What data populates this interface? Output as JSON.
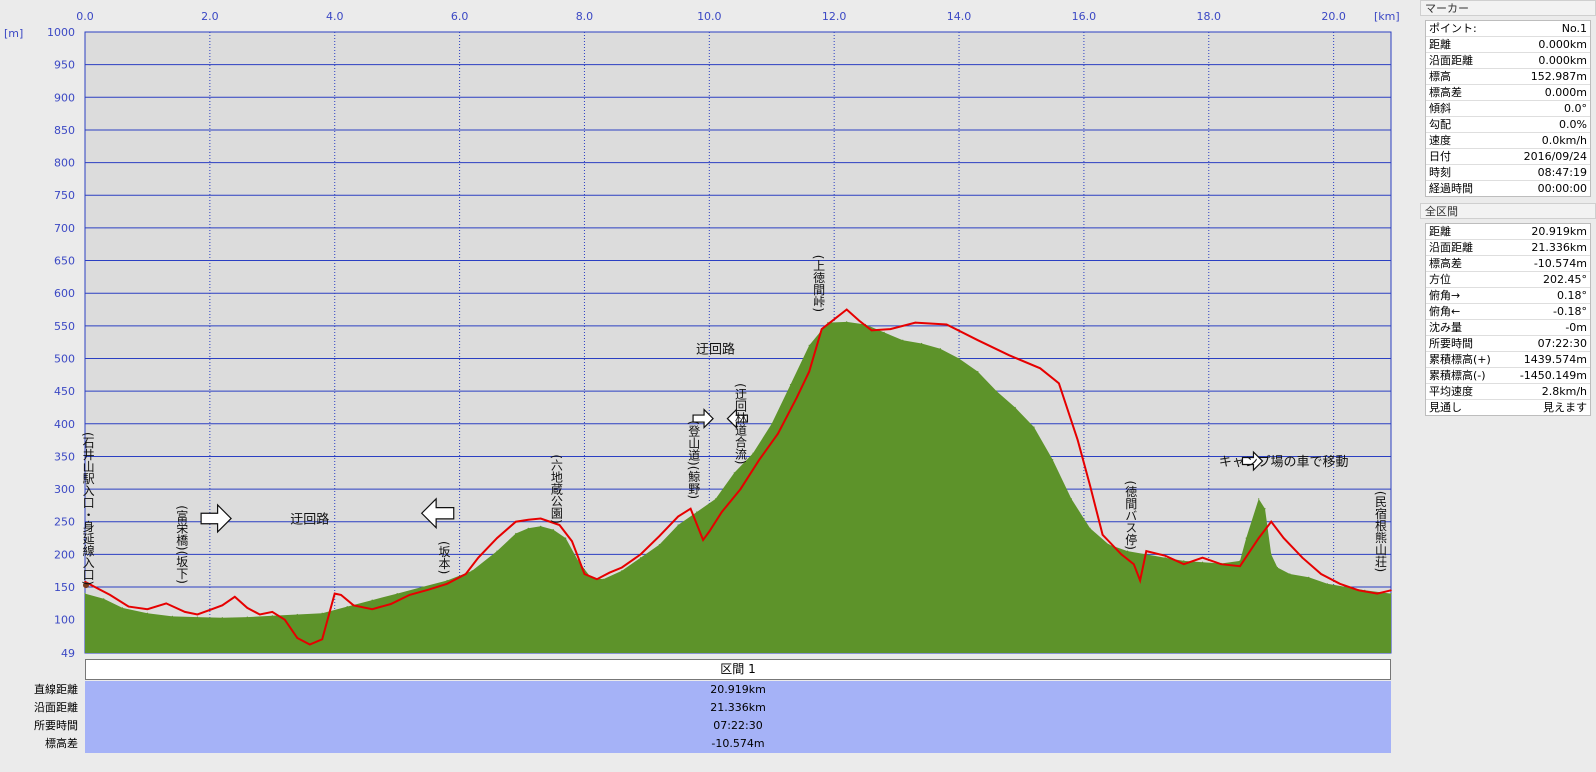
{
  "chart_data": {
    "type": "area",
    "x_unit": "[km]",
    "y_unit": "[m]",
    "xlim": [
      0,
      20.919
    ],
    "ylim": [
      49,
      1000
    ],
    "x_ticks": [
      "0.0",
      "2.0",
      "4.0",
      "6.0",
      "8.0",
      "10.0",
      "12.0",
      "14.0",
      "16.0",
      "18.0",
      "20.0"
    ],
    "y_ticks": [
      "1000",
      "950",
      "900",
      "850",
      "800",
      "750",
      "700",
      "650",
      "600",
      "550",
      "500",
      "450",
      "400",
      "350",
      "300",
      "250",
      "200",
      "150",
      "100",
      "49"
    ],
    "grid": true,
    "series": [
      {
        "color": "#5d932a",
        "x": [
          0,
          0.3,
          0.6,
          1.0,
          1.4,
          1.8,
          2.2,
          2.6,
          3.0,
          3.4,
          3.8,
          4.2,
          4.6,
          5.0,
          5.4,
          5.8,
          6.2,
          6.6,
          6.9,
          7.1,
          7.3,
          7.5,
          7.7,
          7.9,
          8.1,
          8.3,
          8.6,
          8.9,
          9.2,
          9.5,
          9.8,
          10.1,
          10.4,
          10.7,
          11.0,
          11.3,
          11.6,
          11.9,
          12.2,
          12.5,
          12.8,
          13.1,
          13.4,
          13.7,
          14.0,
          14.3,
          14.6,
          14.9,
          15.2,
          15.5,
          15.8,
          16.1,
          16.4,
          16.7,
          17.0,
          17.3,
          17.6,
          17.9,
          18.2,
          18.5,
          18.6,
          18.8,
          18.9,
          19.0,
          19.1,
          19.3,
          19.6,
          19.9,
          20.2,
          20.5,
          20.919
        ],
        "values": [
          140,
          132,
          118,
          110,
          105,
          104,
          103,
          104,
          106,
          108,
          110,
          120,
          130,
          140,
          150,
          160,
          175,
          205,
          232,
          240,
          243,
          238,
          225,
          190,
          165,
          162,
          175,
          195,
          215,
          245,
          265,
          285,
          325,
          355,
          400,
          460,
          520,
          555,
          556,
          552,
          540,
          528,
          523,
          515,
          500,
          480,
          450,
          425,
          395,
          345,
          285,
          240,
          215,
          205,
          200,
          195,
          190,
          188,
          186,
          190,
          225,
          285,
          270,
          200,
          180,
          170,
          165,
          155,
          150,
          145,
          140
        ]
      },
      {
        "color": "#e60000",
        "x": [
          0,
          0.2,
          0.4,
          0.7,
          1.0,
          1.3,
          1.6,
          1.8,
          2.0,
          2.2,
          2.4,
          2.6,
          2.8,
          3.0,
          3.2,
          3.4,
          3.6,
          3.8,
          4.0,
          4.1,
          4.3,
          4.6,
          4.9,
          5.2,
          5.5,
          5.8,
          6.1,
          6.3,
          6.6,
          6.9,
          7.1,
          7.3,
          7.6,
          7.8,
          8.0,
          8.2,
          8.4,
          8.6,
          8.9,
          9.2,
          9.5,
          9.7,
          9.9,
          10.0,
          10.2,
          10.5,
          10.8,
          11.1,
          11.4,
          11.6,
          11.8,
          12.0,
          12.2,
          12.4,
          12.6,
          12.9,
          13.3,
          13.8,
          14.3,
          14.8,
          15.3,
          15.6,
          15.9,
          16.1,
          16.3,
          16.6,
          16.8,
          16.9,
          17.0,
          17.3,
          17.6,
          17.9,
          18.2,
          18.5,
          18.8,
          19.0,
          19.2,
          19.5,
          19.8,
          20.1,
          20.4,
          20.7,
          20.919
        ],
        "values": [
          158,
          148,
          138,
          120,
          116,
          125,
          112,
          108,
          115,
          122,
          135,
          118,
          108,
          112,
          100,
          72,
          62,
          70,
          140,
          138,
          122,
          116,
          124,
          138,
          146,
          155,
          170,
          195,
          225,
          250,
          253,
          255,
          245,
          220,
          170,
          162,
          172,
          180,
          200,
          228,
          258,
          270,
          222,
          235,
          265,
          300,
          345,
          385,
          440,
          480,
          545,
          560,
          575,
          558,
          543,
          545,
          555,
          552,
          528,
          505,
          485,
          462,
          375,
          305,
          230,
          200,
          185,
          160,
          205,
          198,
          185,
          195,
          185,
          182,
          225,
          250,
          225,
          195,
          170,
          155,
          145,
          140,
          145
        ]
      }
    ],
    "annotations": [
      {
        "text": "(石井山駅入口・身延線入口)",
        "x": 0.05,
        "y": 270
      },
      {
        "text": "(富栄橋)(坂下)",
        "x": 1.55,
        "y": 215
      },
      {
        "text": "(坂本)",
        "x": 5.75,
        "y": 195
      },
      {
        "text": "(六地蔵公園)",
        "x": 7.55,
        "y": 300
      },
      {
        "text": "(登山道)(鯨野)",
        "x": 9.75,
        "y": 345
      },
      {
        "text": "(迂回林道合流)",
        "x": 10.5,
        "y": 400
      },
      {
        "text": "(上徳間峠)",
        "x": 11.75,
        "y": 615
      },
      {
        "text": "(徳間バス停)",
        "x": 16.75,
        "y": 260
      },
      {
        "text": "(民宿根熊山荘)",
        "x": 20.75,
        "y": 235
      },
      {
        "text": "迂回路",
        "x": 3.6,
        "y": 255
      },
      {
        "text": "迂回路",
        "x": 10.1,
        "y": 515
      },
      {
        "text": "キャンプ場の車で移動",
        "x": 19.2,
        "y": 343
      }
    ]
  },
  "section": {
    "header": "区間 1",
    "rows": [
      {
        "label": "直線距離",
        "value": "20.919km"
      },
      {
        "label": "沿面距離",
        "value": "21.336km"
      },
      {
        "label": "所要時間",
        "value": "07:22:30"
      },
      {
        "label": "標高差",
        "value": "-10.574m"
      }
    ]
  },
  "marker_panel": {
    "title": "マーカー",
    "rows": [
      {
        "k": "ポイント:",
        "v": "No.1"
      },
      {
        "k": "距離",
        "v": "0.000km"
      },
      {
        "k": "沿面距離",
        "v": "0.000km"
      },
      {
        "k": "標高",
        "v": "152.987m"
      },
      {
        "k": "標高差",
        "v": "0.000m"
      },
      {
        "k": "傾斜",
        "v": "0.0°"
      },
      {
        "k": "勾配",
        "v": "0.0%"
      },
      {
        "k": "速度",
        "v": "0.0km/h"
      },
      {
        "k": "日付",
        "v": "2016/09/24"
      },
      {
        "k": "時刻",
        "v": "08:47:19"
      },
      {
        "k": "経過時間",
        "v": "00:00:00"
      }
    ]
  },
  "total_panel": {
    "title": "全区間",
    "rows": [
      {
        "k": "距離",
        "v": "20.919km"
      },
      {
        "k": "沿面距離",
        "v": "21.336km"
      },
      {
        "k": "標高差",
        "v": "-10.574m"
      },
      {
        "k": "方位",
        "v": "202.45°"
      },
      {
        "k": "俯角→",
        "v": "0.18°"
      },
      {
        "k": "俯角←",
        "v": "-0.18°"
      },
      {
        "k": "沈み量",
        "v": "-0m"
      },
      {
        "k": "所要時間",
        "v": "07:22:30"
      },
      {
        "k": "累積標高(+)",
        "v": "1439.574m"
      },
      {
        "k": "累積標高(-)",
        "v": "-1450.149m"
      },
      {
        "k": "平均速度",
        "v": "2.8km/h"
      },
      {
        "k": "見通し",
        "v": "見えます"
      }
    ]
  }
}
